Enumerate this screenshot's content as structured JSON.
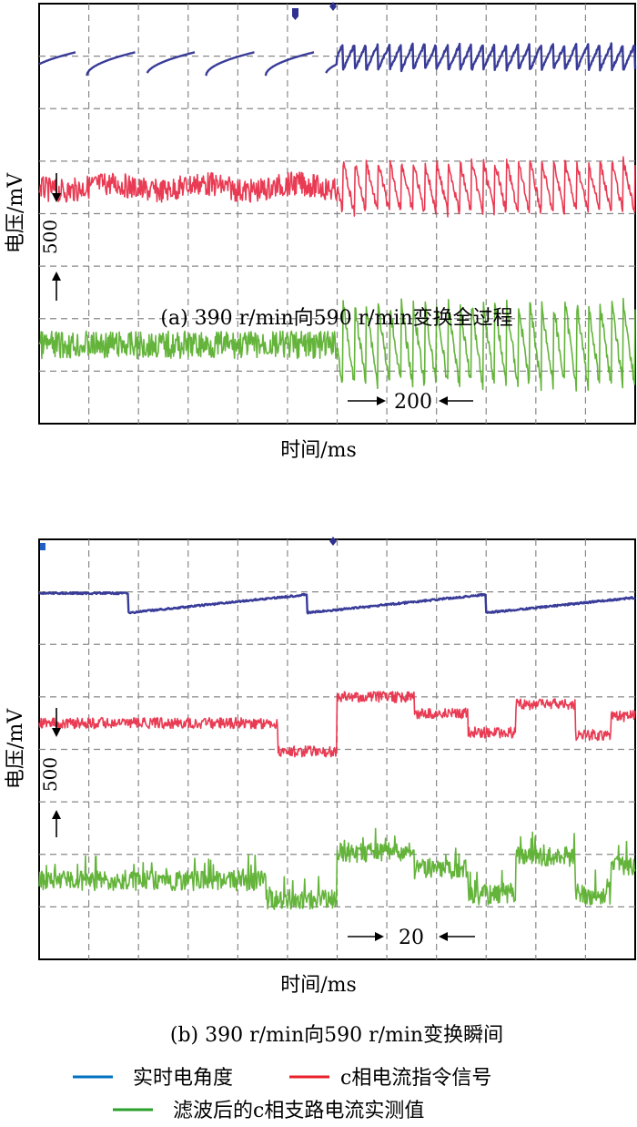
{
  "chart_data": [
    {
      "type": "line",
      "caption": "(a) 390 r/min向590 r/min变换全过程",
      "xlabel": "时间/ms",
      "ylabel": "电压/mV",
      "y_scale_label": "500",
      "x_scale_label": "200",
      "grid": true,
      "transition_x": 0.5,
      "series": [
        {
          "key": "angle",
          "color": "#2e3192",
          "pre_period": 0.1,
          "post_period": 0.0196,
          "amplitude": 0.6
        },
        {
          "key": "command",
          "color": "#e8304a",
          "pre_period": 0.01,
          "post_period": 0.0196,
          "amplitude": 1.0
        },
        {
          "key": "measured",
          "color": "#5cb030",
          "pre_period": 0.01,
          "post_period": 0.0196,
          "amplitude": 1.6
        }
      ]
    },
    {
      "type": "line",
      "caption": "(b) 390 r/min向590 r/min变换瞬间",
      "xlabel": "时间/ms",
      "ylabel": "电压/mV",
      "y_scale_label": "500",
      "x_scale_label": "20",
      "grid": true,
      "transition_x": 0.15,
      "series": [
        {
          "key": "angle",
          "color": "#2e3192",
          "pre_period": 0.15,
          "post_period": 0.3,
          "amplitude": 0.6
        },
        {
          "key": "command",
          "color": "#e8304a",
          "pre_period": 0.3,
          "post_period": 0.3,
          "amplitude": 0.9
        },
        {
          "key": "measured",
          "color": "#5cb030",
          "pre_period": 0.3,
          "post_period": 0.3,
          "amplitude": 1.0
        }
      ]
    }
  ],
  "legend": [
    {
      "label": "实时电角度",
      "color": "#0070c0"
    },
    {
      "label": "c相电流指令信号",
      "color": "#e8202a"
    },
    {
      "label": "滤波后的c相支路电流实测值",
      "color": "#2ca02c"
    }
  ]
}
